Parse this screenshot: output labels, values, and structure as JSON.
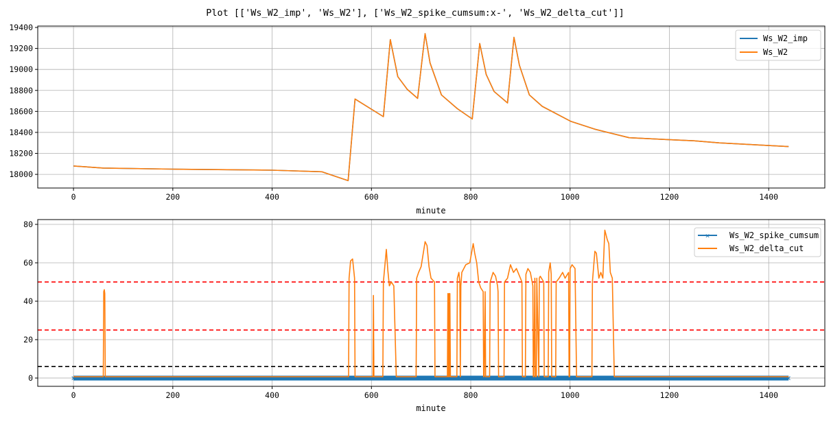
{
  "title": "Plot [['Ws_W2_imp', 'Ws_W2'], ['Ws_W2_spike_cumsum:x-', 'Ws_W2_delta_cut']]",
  "chart_data": [
    {
      "type": "line",
      "xlabel": "minute",
      "ylabel": "",
      "xlim": [
        -72,
        1513
      ],
      "ylim": [
        17870,
        19413
      ],
      "xticks": [
        0,
        200,
        400,
        600,
        800,
        1000,
        1200,
        1400
      ],
      "yticks": [
        18000,
        18200,
        18400,
        18600,
        18800,
        19000,
        19200,
        19400
      ],
      "grid": true,
      "legend": "top-right",
      "series": [
        {
          "name": "Ws_W2_imp",
          "color": "#1f77b4",
          "x": [
            0,
            60,
            200,
            400,
            500,
            553,
            567,
            624,
            638,
            653,
            672,
            693,
            708,
            718,
            741,
            773,
            803,
            818,
            831,
            847,
            874,
            887,
            898,
            918,
            944,
            1001,
            1050,
            1119,
            1200,
            1250,
            1300,
            1400,
            1440
          ],
          "y": [
            18080,
            18060,
            18050,
            18040,
            18025,
            17940,
            18718,
            18550,
            19284,
            18931,
            18811,
            18724,
            19341,
            19062,
            18757,
            18626,
            18528,
            19247,
            18953,
            18790,
            18681,
            19306,
            19040,
            18757,
            18648,
            18506,
            18430,
            18349,
            18330,
            18320,
            18300,
            18275,
            18265
          ]
        },
        {
          "name": "Ws_W2",
          "color": "#ff7f0e",
          "x": [
            0,
            60,
            200,
            400,
            500,
            553,
            567,
            624,
            638,
            653,
            672,
            693,
            708,
            718,
            741,
            773,
            803,
            818,
            831,
            847,
            874,
            887,
            898,
            918,
            944,
            1001,
            1050,
            1119,
            1200,
            1250,
            1300,
            1400,
            1440
          ],
          "y": [
            18080,
            18060,
            18050,
            18040,
            18025,
            17940,
            18718,
            18550,
            19284,
            18931,
            18811,
            18724,
            19341,
            19062,
            18757,
            18626,
            18528,
            19247,
            18953,
            18790,
            18681,
            19306,
            19040,
            18757,
            18648,
            18506,
            18430,
            18349,
            18330,
            18320,
            18300,
            18275,
            18265
          ]
        }
      ]
    },
    {
      "type": "line",
      "xlabel": "minute",
      "ylabel": "",
      "xlim": [
        -72,
        1513
      ],
      "ylim": [
        -4.3,
        82.5
      ],
      "xticks": [
        0,
        200,
        400,
        600,
        800,
        1000,
        1200,
        1400
      ],
      "yticks": [
        0,
        20,
        40,
        60,
        80
      ],
      "grid": true,
      "legend": "top-right",
      "hlines": [
        {
          "y": 50,
          "color": "#ff0000",
          "style": "dashed"
        },
        {
          "y": 25,
          "color": "#ff0000",
          "style": "dashed"
        },
        {
          "y": 6,
          "color": "#000000",
          "style": "dashed"
        }
      ],
      "series": [
        {
          "name": "Ws_W2_spike_cumsum",
          "color": "#1f77b4",
          "marker": "x",
          "x": [
            0,
            1440
          ],
          "y": [
            0,
            0
          ]
        },
        {
          "name": "Ws_W2_delta_cut",
          "color": "#ff7f0e",
          "x": [
            0,
            60,
            61,
            62,
            63,
            64,
            554,
            555,
            558,
            562,
            566,
            567,
            568,
            603,
            604,
            605,
            623,
            624,
            630,
            633,
            636,
            640,
            645,
            650,
            651,
            652,
            690,
            691,
            695,
            700,
            708,
            712,
            716,
            720,
            727,
            728,
            729,
            753,
            754,
            755,
            756,
            757,
            758,
            759,
            760,
            772,
            773,
            776,
            778,
            779,
            780,
            782,
            790,
            798,
            805,
            808,
            812,
            816,
            820,
            825,
            826,
            827,
            829,
            830,
            831,
            832,
            838,
            839,
            845,
            850,
            854,
            855,
            856,
            867,
            868,
            874,
            880,
            886,
            892,
            900,
            903,
            904,
            910,
            911,
            915,
            920,
            925,
            926,
            927,
            929,
            930,
            932,
            933,
            937,
            938,
            940,
            947,
            948,
            949,
            956,
            957,
            960,
            962,
            963,
            964,
            971,
            972,
            978,
            985,
            990,
            997,
            998,
            999,
            1000,
            1004,
            1010,
            1013,
            1014,
            1044,
            1045,
            1050,
            1053,
            1058,
            1062,
            1066,
            1070,
            1075,
            1078,
            1081,
            1085,
            1089,
            1090,
            1440
          ],
          "y": [
            0.7,
            0.7,
            45,
            46,
            44,
            0.7,
            0.7,
            52,
            61,
            62,
            52,
            0.7,
            0.7,
            0.7,
            43,
            0.7,
            0.7,
            50,
            67,
            56,
            48,
            50,
            48,
            0.7,
            0.7,
            0.7,
            0.7,
            52,
            55,
            58,
            71,
            69,
            58,
            52,
            50,
            0.7,
            0.7,
            0.7,
            44,
            0.7,
            44,
            0.7,
            44,
            0.7,
            0.7,
            0.7,
            52,
            55,
            50,
            0.7,
            48,
            55,
            59,
            60,
            70,
            65,
            60,
            50,
            47,
            45,
            0.7,
            0.7,
            45,
            0.7,
            0.7,
            0.7,
            0.7,
            50,
            55,
            53,
            48,
            45,
            0.7,
            0.7,
            50,
            52,
            59,
            55,
            57,
            52,
            50,
            0.7,
            0.7,
            54,
            57,
            55,
            48,
            0.7,
            0.7,
            52,
            0.7,
            0.7,
            52,
            0.7,
            52,
            53,
            50,
            0.7,
            0.7,
            0.7,
            55,
            60,
            54,
            0.7,
            0.7,
            0.7,
            50,
            52,
            55,
            52,
            55,
            0.7,
            0.7,
            57,
            59,
            57,
            0.7,
            0.7,
            0.7,
            50,
            66,
            65,
            52,
            55,
            52,
            77,
            72,
            70,
            55,
            52,
            0.7,
            0.7,
            0.7
          ]
        }
      ]
    }
  ]
}
